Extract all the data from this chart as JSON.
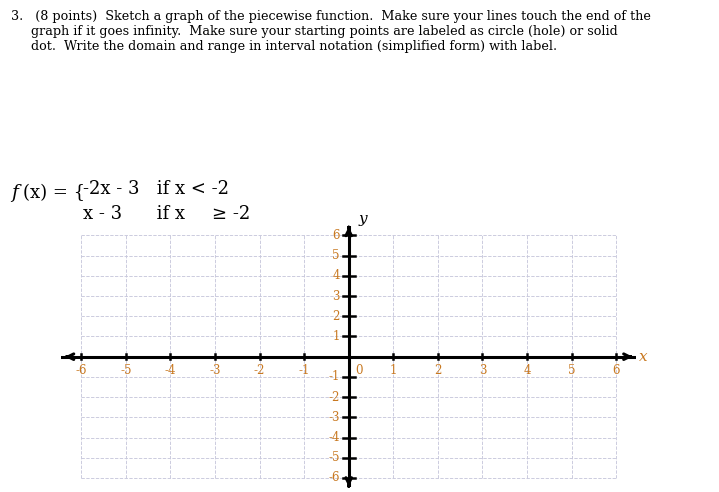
{
  "xmin": -6,
  "xmax": 6,
  "ymin": -6,
  "ymax": 6,
  "xticks": [
    -6,
    -5,
    -4,
    -3,
    -2,
    -1,
    0,
    1,
    2,
    3,
    4,
    5,
    6
  ],
  "yticks": [
    -6,
    -5,
    -4,
    -3,
    -2,
    -1,
    0,
    1,
    2,
    3,
    4,
    5,
    6
  ],
  "xlabel": "x",
  "ylabel": "y",
  "grid_color": "#c8c8dc",
  "axis_color": "#000000",
  "tick_label_color": "#c87820",
  "background_color": "#ffffff",
  "fig_width": 7.19,
  "fig_height": 4.92,
  "dpi": 100,
  "instruction_line1": "3.   (8 points)  Sketch a graph of the piecewise function.  Make sure your lines touch the end of the",
  "instruction_line2": "     graph if it goes infinity.  Make sure your starting points are labeled as circle (hole) or solid",
  "instruction_line3": "     dot.  Write the domain and range in interval notation (simplified form) with label."
}
